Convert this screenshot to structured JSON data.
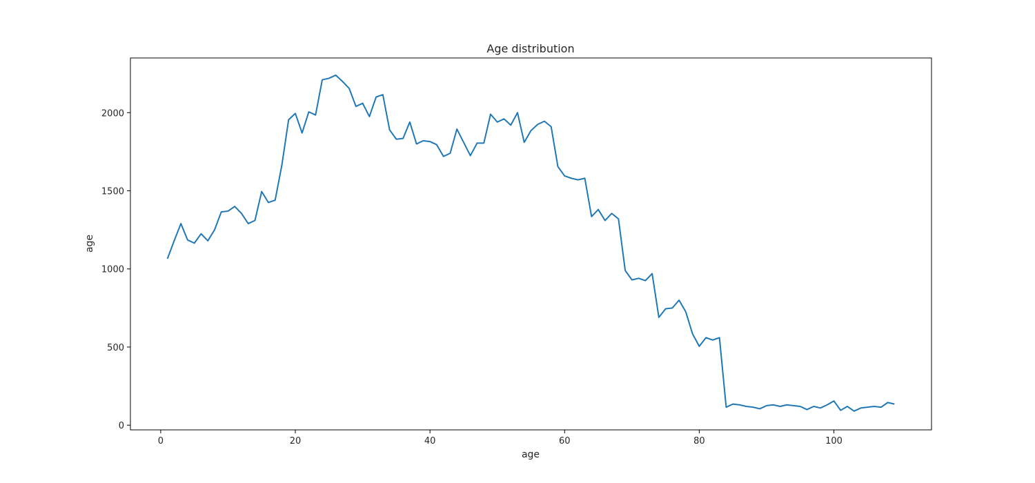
{
  "chart_data": {
    "type": "line",
    "title": "Age distribution",
    "xlabel": "age",
    "ylabel": "age",
    "xlim": [
      -4.5,
      114.5
    ],
    "ylim": [
      -30,
      2350
    ],
    "xticks": [
      0,
      20,
      40,
      60,
      80,
      100
    ],
    "yticks": [
      0,
      500,
      1000,
      1500,
      2000
    ],
    "grid": false,
    "line_color": "#1f77b4",
    "series": [
      {
        "x": [
          1,
          2,
          3,
          4,
          5,
          6,
          7,
          8,
          9,
          10,
          11,
          12,
          13,
          14,
          15,
          16,
          17,
          18,
          19,
          20,
          21,
          22,
          23,
          24,
          25,
          26,
          27,
          28,
          29,
          30,
          31,
          32,
          33,
          34,
          35,
          36,
          37,
          38,
          39,
          40,
          41,
          42,
          43,
          44,
          45,
          46,
          47,
          48,
          49,
          50,
          51,
          52,
          53,
          54,
          55,
          56,
          57,
          58,
          59,
          60,
          61,
          62,
          63,
          64,
          65,
          66,
          67,
          68,
          69,
          70,
          71,
          72,
          73,
          74,
          75,
          76,
          77,
          78,
          79,
          80,
          81,
          82,
          83,
          84,
          85,
          86,
          87,
          88,
          89,
          90,
          91,
          92,
          93,
          94,
          95,
          96,
          97,
          98,
          99,
          100,
          101,
          102,
          103,
          104,
          105,
          106,
          107,
          108,
          109
        ],
        "values": [
          1065,
          1180,
          1290,
          1185,
          1165,
          1225,
          1180,
          1250,
          1365,
          1370,
          1400,
          1355,
          1290,
          1310,
          1495,
          1425,
          1440,
          1665,
          1955,
          1995,
          1870,
          2005,
          1985,
          2210,
          2220,
          2240,
          2200,
          2155,
          2040,
          2060,
          1975,
          2100,
          2115,
          1890,
          1830,
          1835,
          1940,
          1800,
          1820,
          1815,
          1795,
          1720,
          1740,
          1895,
          1810,
          1725,
          1805,
          1805,
          1990,
          1940,
          1960,
          1920,
          2000,
          1810,
          1885,
          1925,
          1945,
          1910,
          1655,
          1595,
          1580,
          1570,
          1580,
          1335,
          1380,
          1310,
          1355,
          1320,
          990,
          930,
          940,
          925,
          970,
          690,
          745,
          750,
          800,
          725,
          585,
          505,
          560,
          545,
          560,
          115,
          135,
          130,
          120,
          115,
          105,
          125,
          130,
          120,
          130,
          125,
          120,
          100,
          120,
          110,
          130,
          155,
          95,
          120,
          90,
          110,
          115,
          120,
          115,
          145,
          135
        ]
      }
    ]
  }
}
